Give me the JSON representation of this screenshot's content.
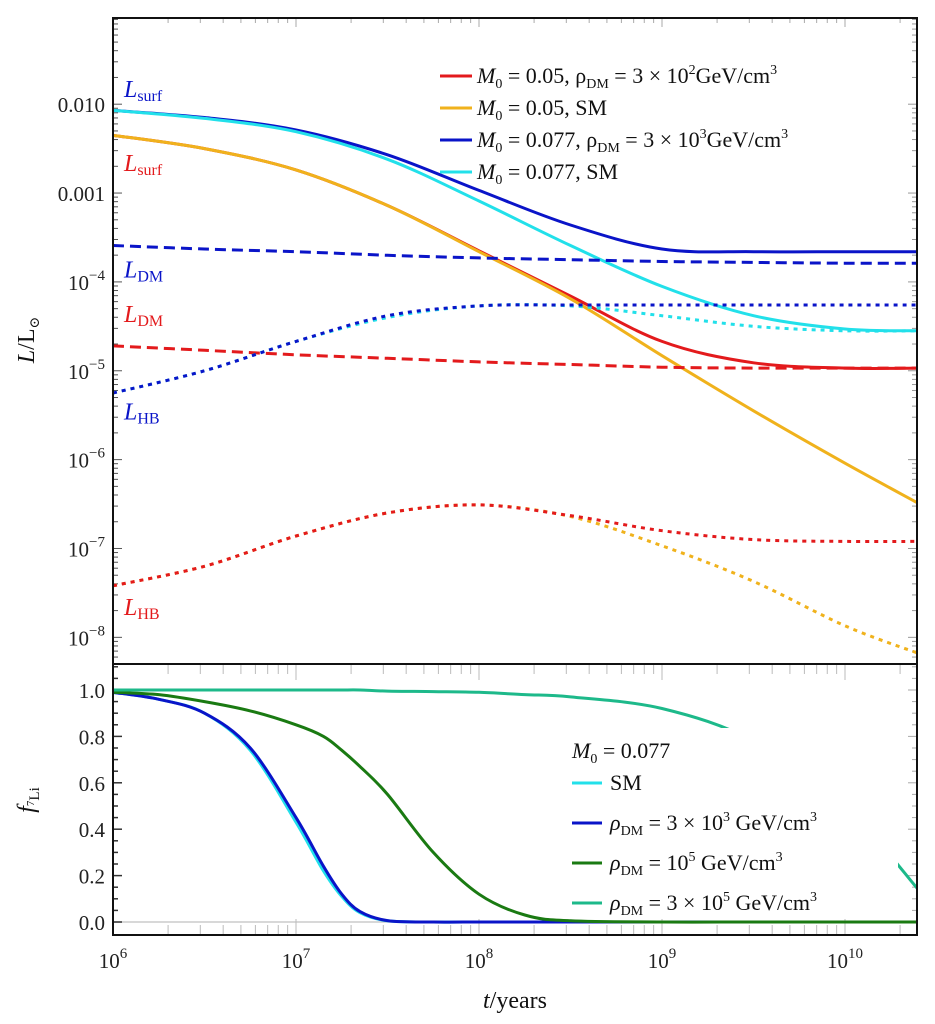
{
  "chart_data": [
    {
      "type": "line",
      "panel": "top",
      "ylabel": "L/L⊙",
      "yscale": "log",
      "xscale": "log",
      "xlim": [
        1000000.0,
        25000000000.0
      ],
      "ylim_log10": [
        -8.3,
        -1.03
      ],
      "y_ticks": [
        {
          "value_log10": -2,
          "label": "0.010"
        },
        {
          "value_log10": -3,
          "label": "0.001"
        },
        {
          "value_log10": -4,
          "label": "10",
          "exp": "−4"
        },
        {
          "value_log10": -5,
          "label": "10",
          "exp": "−5"
        },
        {
          "value_log10": -6,
          "label": "10",
          "exp": "−6"
        },
        {
          "value_log10": -7,
          "label": "10",
          "exp": "−7"
        },
        {
          "value_log10": -8,
          "label": "10",
          "exp": "−8"
        }
      ],
      "x_log10": [
        6,
        6.5,
        7,
        7.5,
        8,
        8.5,
        9,
        9.5,
        10,
        10.4
      ],
      "series": [
        {
          "name": "M0 = 0.05, ρDM = 3×10^2 GeV/cm^3 (L_surf)",
          "color": "#e31a1c",
          "style": "solid",
          "log10_values": [
            -2.35,
            -2.5,
            -2.74,
            -3.14,
            -3.65,
            -4.16,
            -4.67,
            -4.91,
            -4.97,
            -4.97
          ]
        },
        {
          "name": "M0 = 0.05, SM (L_surf)",
          "color": "#f0b21c",
          "style": "solid",
          "log10_values": [
            -2.35,
            -2.5,
            -2.74,
            -3.14,
            -3.66,
            -4.19,
            -4.83,
            -5.45,
            -6.04,
            -6.49
          ]
        },
        {
          "name": "M0 = 0.077, ρDM = 3×10^3 GeV/cm^3 (L_surf)",
          "color": "#0a14c8",
          "style": "solid",
          "log10_values": [
            -2.07,
            -2.15,
            -2.29,
            -2.57,
            -2.97,
            -3.36,
            -3.63,
            -3.66,
            -3.66,
            -3.66
          ]
        },
        {
          "name": "M0 = 0.077, SM (L_surf)",
          "color": "#22e0ea",
          "style": "solid",
          "log10_values": [
            -2.07,
            -2.16,
            -2.31,
            -2.62,
            -3.09,
            -3.59,
            -4.05,
            -4.38,
            -4.53,
            -4.55
          ]
        },
        {
          "name": "M0 = 0.077, ρDM = 3×10^3 (L_DM)",
          "color": "#0a14c8",
          "style": "dashed",
          "log10_values": [
            -3.59,
            -3.63,
            -3.66,
            -3.7,
            -3.73,
            -3.75,
            -3.77,
            -3.78,
            -3.79,
            -3.79
          ]
        },
        {
          "name": "M0 = 0.05, ρDM = 3×10^2 (L_DM)",
          "color": "#e31a1c",
          "style": "dashed",
          "log10_values": [
            -4.72,
            -4.77,
            -4.82,
            -4.86,
            -4.9,
            -4.93,
            -4.96,
            -4.97,
            -4.97,
            -4.97
          ]
        },
        {
          "name": "M0 = 0.077, SM (L_HB)",
          "color": "#22e0ea",
          "style": "dotted",
          "log10_values": [
            -5.25,
            -5.0,
            -4.67,
            -4.4,
            -4.27,
            -4.27,
            -4.38,
            -4.5,
            -4.55,
            -4.55
          ]
        },
        {
          "name": "M0 = 0.077, ρDM = 3×10^3 (L_HB)",
          "color": "#0a14c8",
          "style": "dotted",
          "log10_values": [
            -5.25,
            -5.0,
            -4.67,
            -4.38,
            -4.27,
            -4.26,
            -4.26,
            -4.26,
            -4.26,
            -4.26
          ]
        },
        {
          "name": "M0 = 0.05, SM (L_HB)",
          "color": "#f0b21c",
          "style": "dotted",
          "log10_values": [
            -7.42,
            -7.2,
            -6.86,
            -6.6,
            -6.51,
            -6.64,
            -6.97,
            -7.37,
            -7.87,
            -8.18
          ]
        },
        {
          "name": "M0 = 0.05, ρDM = 3×10^2 (L_HB)",
          "color": "#e31a1c",
          "style": "dotted",
          "log10_values": [
            -7.42,
            -7.2,
            -6.86,
            -6.6,
            -6.51,
            -6.63,
            -6.8,
            -6.9,
            -6.92,
            -6.92
          ]
        }
      ],
      "legend": {
        "placement": "top-right",
        "entries": [
          {
            "color": "#e31a1c",
            "text": "M",
            "sub": "0",
            "rest": " = 0.05, ρ",
            "sub2": "DM",
            "rest2": " = 3 × 10",
            "sup": "2",
            "rest3": "GeV/cm",
            "sup2": "3"
          },
          {
            "color": "#f0b21c",
            "text": "M",
            "sub": "0",
            "rest": " = 0.05, SM"
          },
          {
            "color": "#0a14c8",
            "text": "M",
            "sub": "0",
            "rest": " = 0.077, ρ",
            "sub2": "DM",
            "rest2": " = 3 × 10",
            "sup": "3",
            "rest3": "GeV/cm",
            "sup2": "3"
          },
          {
            "color": "#22e0ea",
            "text": "M",
            "sub": "0",
            "rest": " = 0.077, SM"
          }
        ]
      },
      "annotations": [
        {
          "text": "L",
          "sub": "surf",
          "color": "#0a14c8",
          "x_log10": 6.06,
          "y_log10": -1.92
        },
        {
          "text": "L",
          "sub": "surf",
          "color": "#e31a1c",
          "x_log10": 6.06,
          "y_log10": -2.75
        },
        {
          "text": "L",
          "sub": "DM",
          "color": "#0a14c8",
          "x_log10": 6.06,
          "y_log10": -3.95
        },
        {
          "text": "L",
          "sub": "DM",
          "color": "#e31a1c",
          "x_log10": 6.06,
          "y_log10": -4.45
        },
        {
          "text": "L",
          "sub": "HB",
          "color": "#0a14c8",
          "x_log10": 6.06,
          "y_log10": -5.55
        },
        {
          "text": "L",
          "sub": "HB",
          "color": "#e31a1c",
          "x_log10": 6.06,
          "y_log10": -7.75
        }
      ]
    },
    {
      "type": "line",
      "panel": "bottom",
      "ylabel": "f",
      "ylabel_sub": "7Li",
      "xlabel": "t/years",
      "xscale": "log",
      "xlim": [
        1000000.0,
        25000000000.0
      ],
      "ylim": [
        -0.056,
        1.112
      ],
      "y_ticks": [
        "0.0",
        "0.2",
        "0.4",
        "0.6",
        "0.8",
        "1.0"
      ],
      "x_ticks": [
        {
          "value_log10": 6,
          "base": "10",
          "exp": "6"
        },
        {
          "value_log10": 7,
          "base": "10",
          "exp": "7"
        },
        {
          "value_log10": 8,
          "base": "10",
          "exp": "8"
        },
        {
          "value_log10": 9,
          "base": "10",
          "exp": "9"
        },
        {
          "value_log10": 10,
          "base": "10",
          "exp": "10"
        }
      ],
      "x_log10": [
        6,
        6.25,
        6.5,
        6.75,
        7,
        7.15,
        7.25,
        7.35,
        7.5,
        7.75,
        8,
        8.25,
        8.5,
        9,
        9.5,
        10,
        10.4
      ],
      "series": [
        {
          "name": "SM",
          "color": "#22e0ea",
          "values": [
            0.99,
            0.96,
            0.9,
            0.74,
            0.43,
            0.22,
            0.11,
            0.04,
            0.005,
            0,
            0,
            0,
            0,
            0,
            0,
            0,
            0
          ]
        },
        {
          "name": "ρDM = 3×10^3 GeV/cm^3",
          "color": "#0a14c8",
          "values": [
            0.99,
            0.96,
            0.9,
            0.75,
            0.45,
            0.24,
            0.12,
            0.045,
            0.006,
            0,
            0,
            0,
            0,
            0,
            0,
            0,
            0
          ]
        },
        {
          "name": "ρDM = 10^5 GeV/cm^3",
          "color": "#1a7a12",
          "values": [
            0.99,
            0.98,
            0.95,
            0.91,
            0.85,
            0.8,
            0.74,
            0.67,
            0.55,
            0.3,
            0.12,
            0.03,
            0.005,
            0,
            0,
            0,
            0
          ]
        },
        {
          "name": "ρDM = 3×10^5 GeV/cm^3",
          "color": "#1db98a",
          "values": [
            1.0,
            1.0,
            1.0,
            1.0,
            1.0,
            1.0,
            1.0,
            1.0,
            0.995,
            0.993,
            0.99,
            0.98,
            0.97,
            0.92,
            0.78,
            0.5,
            0.14
          ]
        }
      ],
      "legend": {
        "placement": "right",
        "title": {
          "text": "M",
          "sub": "0",
          "rest": " = 0.077"
        },
        "entries": [
          {
            "color": "#22e0ea",
            "text": "SM"
          },
          {
            "color": "#0a14c8",
            "text": "ρ",
            "sub": "DM",
            "rest": " = 3 × 10",
            "sup": "3",
            "rest2": " GeV/cm",
            "sup2": "3"
          },
          {
            "color": "#1a7a12",
            "text": "ρ",
            "sub": "DM",
            "rest": " = 10",
            "sup": "5",
            "rest2": " GeV/cm",
            "sup2": "3"
          },
          {
            "color": "#1db98a",
            "text": "ρ",
            "sub": "DM",
            "rest": " = 3 × 10",
            "sup": "5",
            "rest2": " GeV/cm",
            "sup2": "3"
          }
        ]
      }
    }
  ]
}
